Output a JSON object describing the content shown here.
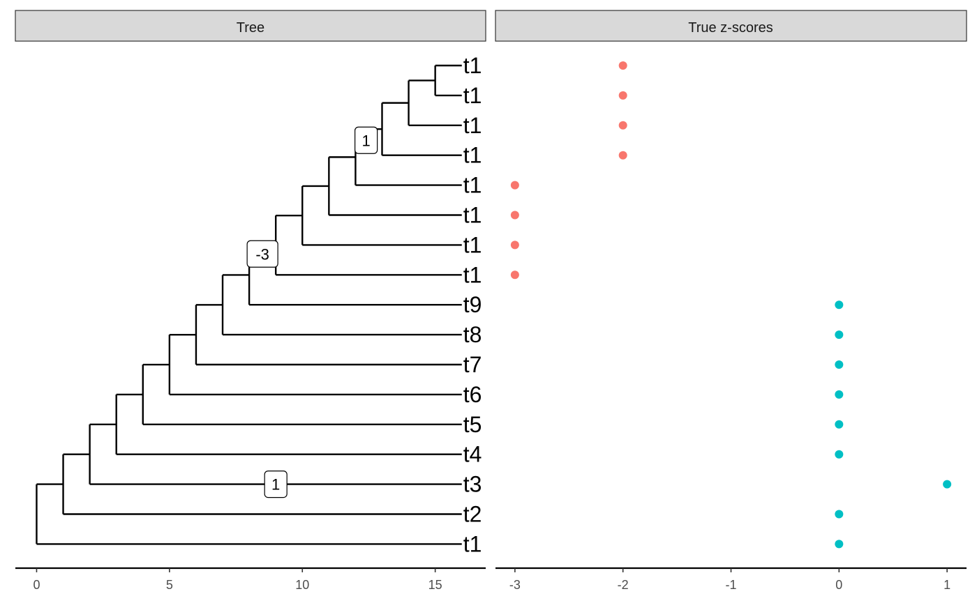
{
  "colors": {
    "negative": "#F8766D",
    "zero_or_positive": "#00BFC4",
    "strip_fill": "#D9D9D9",
    "line": "#000000"
  },
  "chart_data": [
    {
      "type": "tree",
      "strip_label": "Tree",
      "xlim": [
        -0.8,
        16.9
      ],
      "xticks": [
        0,
        5,
        10,
        15
      ],
      "tips": [
        "t1",
        "t1",
        "t1",
        "t1",
        "t1",
        "t1",
        "t1",
        "t1",
        "t9",
        "t8",
        "t7",
        "t6",
        "t5",
        "t4",
        "t3",
        "t2",
        "t1"
      ],
      "tip_x": 16,
      "spine_x": [
        15,
        14,
        13,
        12,
        11,
        10,
        9,
        8,
        7,
        6,
        5,
        4,
        3,
        2,
        1,
        0
      ],
      "node_labels": [
        {
          "label": "1",
          "x": 12.4,
          "row": 2.5
        },
        {
          "label": "-3",
          "x": 8.5,
          "row": 6.3
        },
        {
          "label": "1",
          "x": 9,
          "row": 14
        }
      ]
    },
    {
      "type": "scatter",
      "strip_label": "True z-scores",
      "xlim": [
        -3.18,
        1.18
      ],
      "xticks": [
        -3,
        -2,
        -1,
        0,
        1
      ],
      "x_tick_labels": [
        "-3",
        "-2",
        "-1",
        "0",
        "1"
      ],
      "y_categories": [
        "t1",
        "t1",
        "t1",
        "t1",
        "t1",
        "t1",
        "t1",
        "t1",
        "t9",
        "t8",
        "t7",
        "t6",
        "t5",
        "t4",
        "t3",
        "t2",
        "t1"
      ],
      "values": [
        -2,
        -2,
        -2,
        -2,
        -3,
        -3,
        -3,
        -3,
        0,
        0,
        0,
        0,
        0,
        0,
        1,
        0,
        0
      ],
      "color_rule": "negative values red, others teal"
    }
  ]
}
